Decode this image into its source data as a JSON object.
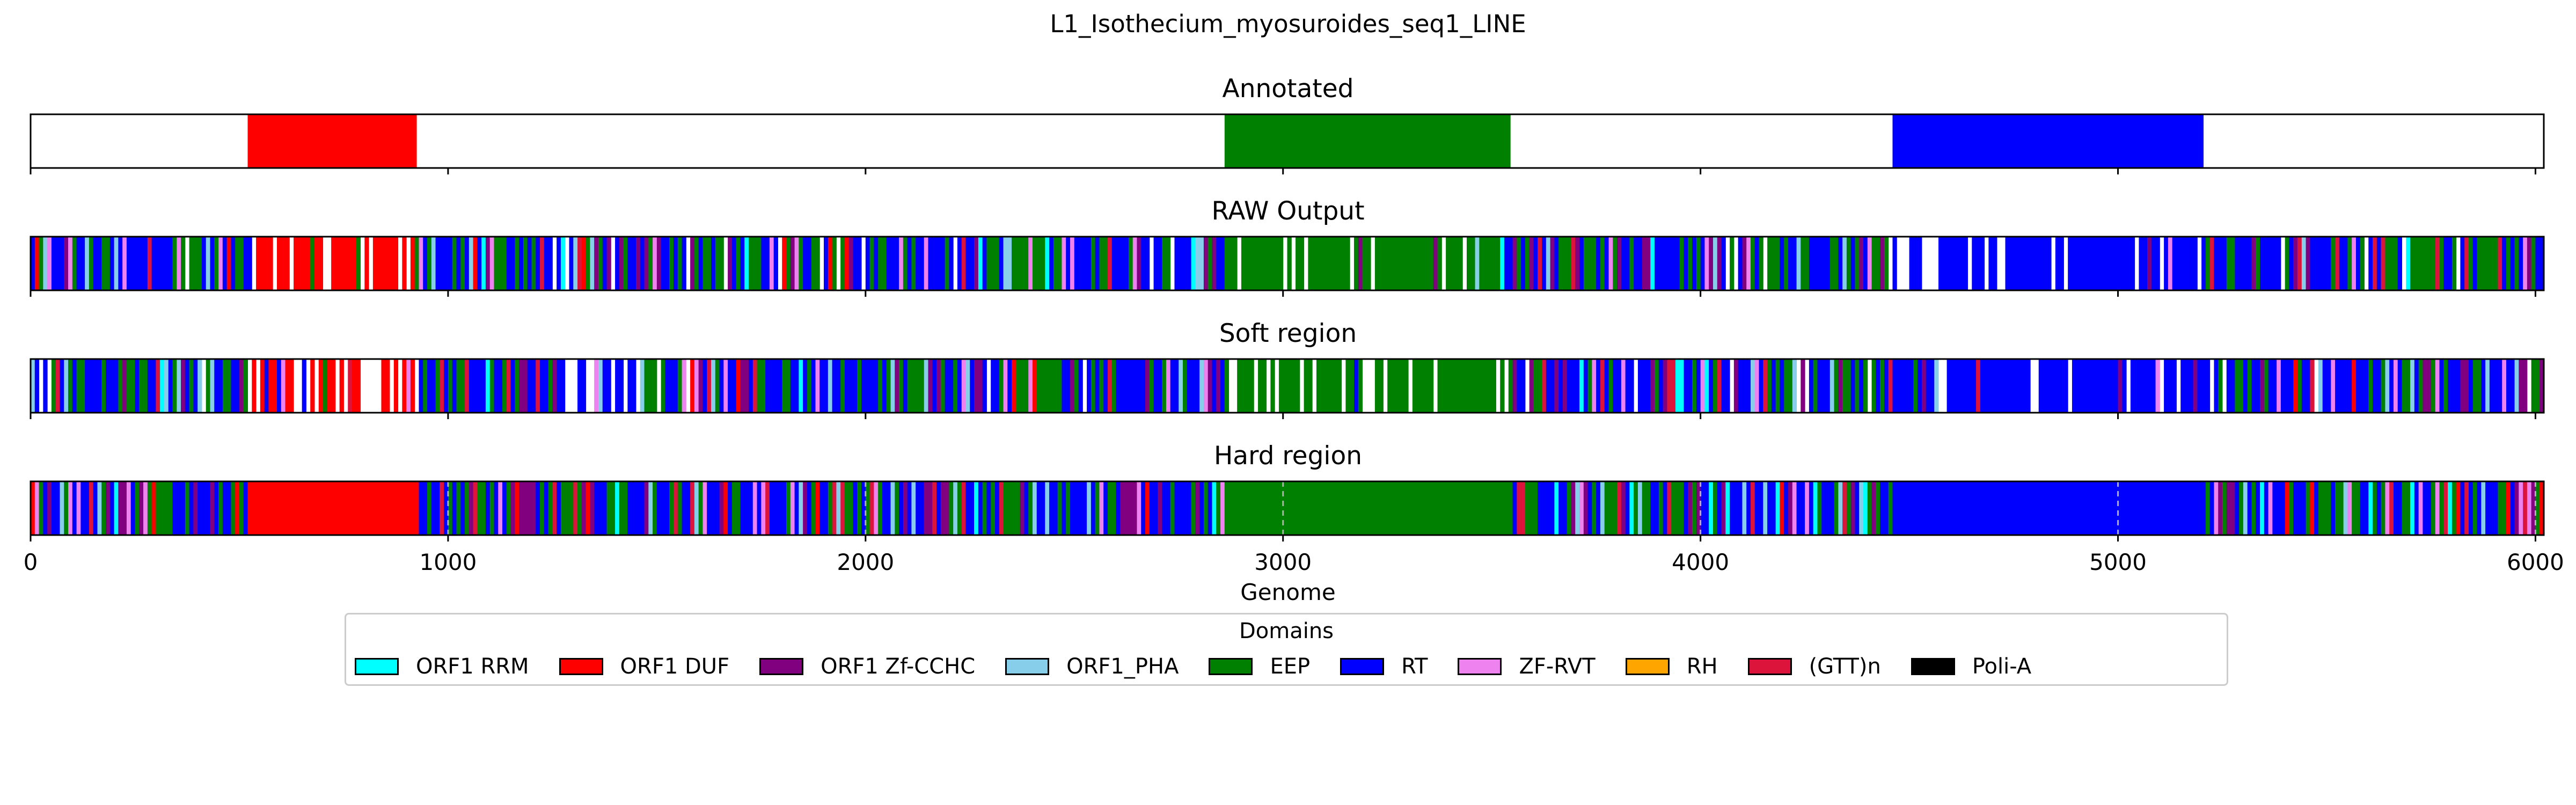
{
  "chart_data": {
    "type": "bar",
    "title": "L1_Isothecium_myosuroides_seq1_LINE",
    "xlabel": "Genome",
    "xlim": [
      0,
      6020
    ],
    "xticks": [
      0,
      1000,
      2000,
      3000,
      4000,
      5000,
      6000
    ],
    "tick_labels": [
      "0",
      "1000",
      "2000",
      "3000",
      "4000",
      "5000",
      "6000"
    ],
    "panels": [
      {
        "title": "Annotated",
        "mode": "annotated"
      },
      {
        "title": "RAW Output",
        "mode": "raw"
      },
      {
        "title": "Soft region",
        "mode": "soft"
      },
      {
        "title": "Hard region",
        "mode": "hard"
      }
    ],
    "annotated_regions": [
      {
        "domain": "ORF1 DUF",
        "start": 520,
        "end": 925
      },
      {
        "domain": "EEP",
        "start": 2860,
        "end": 3545
      },
      {
        "domain": "RT",
        "start": 4460,
        "end": 5205
      }
    ],
    "legend": {
      "title": "Domains",
      "entries": [
        {
          "label": "ORF1 RRM",
          "color": "#00ffff"
        },
        {
          "label": "ORF1 DUF",
          "color": "#ff0000"
        },
        {
          "label": "ORF1 Zf-CCHC",
          "color": "#800080"
        },
        {
          "label": "ORF1_PHA",
          "color": "#87ceeb"
        },
        {
          "label": "EEP",
          "color": "#008000"
        },
        {
          "label": "RT",
          "color": "#0000ff"
        },
        {
          "label": "ZF-RVT",
          "color": "#ee82ee"
        },
        {
          "label": "RH",
          "color": "#ffa500"
        },
        {
          "label": "(GTT)n",
          "color": "#dc143c"
        },
        {
          "label": "Poli-A",
          "color": "#000000"
        }
      ]
    }
  }
}
